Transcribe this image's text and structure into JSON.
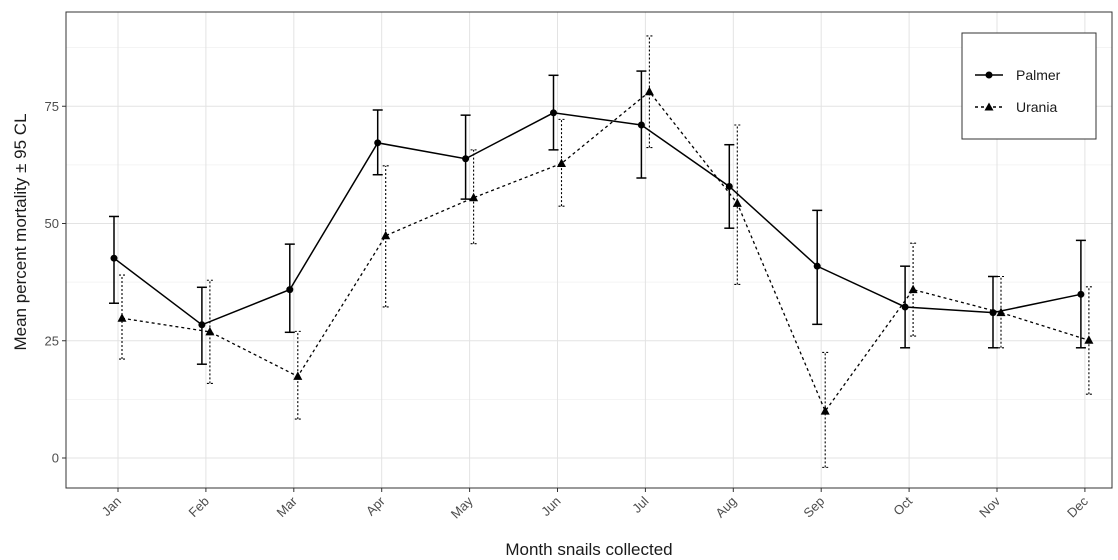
{
  "chart_data": {
    "type": "line",
    "title": "",
    "xlabel": "Month snails collected",
    "ylabel": "Mean percent mortality ± 95 CL",
    "categories": [
      "Jan",
      "Feb",
      "Mar",
      "Apr",
      "May",
      "Jun",
      "Jul",
      "Aug",
      "Sep",
      "Oct",
      "Nov",
      "Dec"
    ],
    "yticks": [
      0,
      25,
      50,
      75
    ],
    "ylim": [
      -7,
      95
    ],
    "grid": true,
    "legend_position": "top-right",
    "series": [
      {
        "name": "Palmer",
        "marker": "circle",
        "line_style": "solid",
        "values": [
          42.6,
          28.4,
          35.9,
          67.2,
          63.8,
          73.6,
          71.0,
          57.9,
          40.9,
          32.2,
          31.0,
          34.9
        ],
        "lower": [
          33.0,
          20.0,
          26.8,
          60.4,
          55.2,
          65.7,
          59.7,
          49.0,
          28.5,
          23.5,
          23.5,
          23.5
        ],
        "upper": [
          51.5,
          36.4,
          45.6,
          74.2,
          73.1,
          81.6,
          82.5,
          66.8,
          52.8,
          40.9,
          38.7,
          46.4
        ]
      },
      {
        "name": "Urania",
        "marker": "triangle",
        "line_style": "dashed",
        "values": [
          29.8,
          26.9,
          17.4,
          47.4,
          55.5,
          62.8,
          78.1,
          54.3,
          10.0,
          35.9,
          31.0,
          25.1
        ],
        "lower": [
          21.1,
          15.9,
          8.3,
          32.2,
          45.7,
          53.7,
          66.2,
          37.0,
          -2.0,
          26.0,
          23.5,
          13.6
        ],
        "upper": [
          39.0,
          37.9,
          27.0,
          62.3,
          65.7,
          72.2,
          90.0,
          71.0,
          22.5,
          45.8,
          38.7,
          36.5
        ]
      }
    ]
  }
}
